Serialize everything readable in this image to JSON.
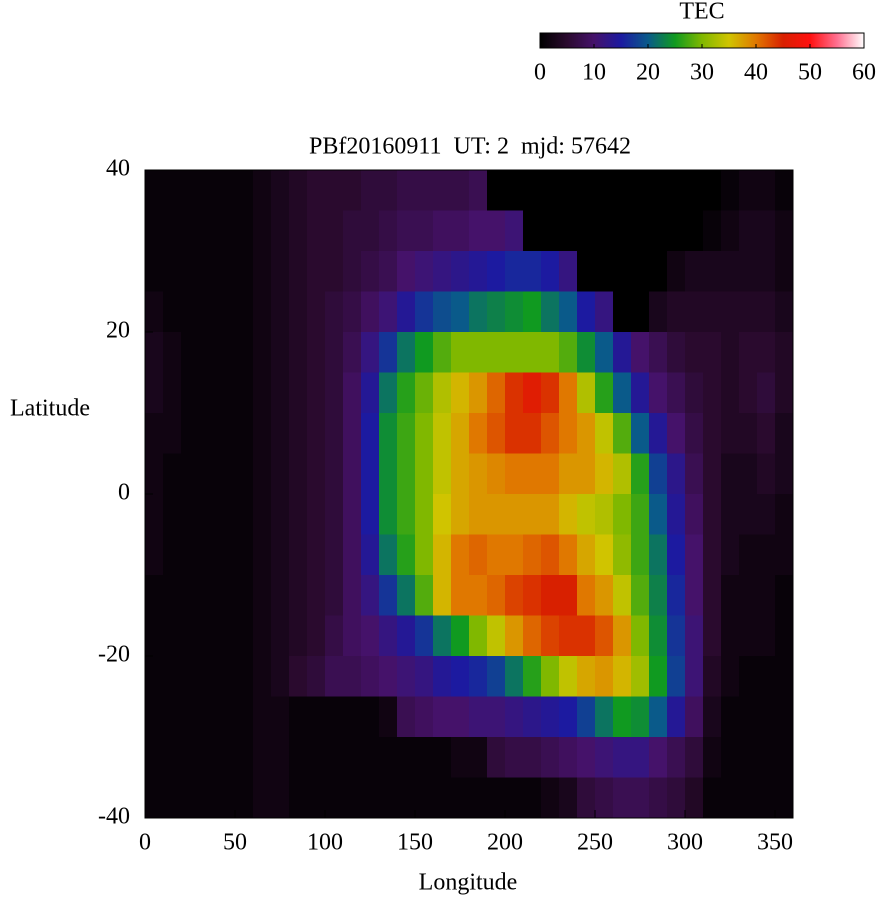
{
  "chart_data": {
    "type": "heatmap",
    "title": "PBf20160911  UT: 2  mjd: 57642",
    "x_label": "Longitude",
    "y_label": "Latitude",
    "xlim": [
      0,
      360
    ],
    "xticks": [
      0,
      50,
      100,
      150,
      200,
      250,
      300,
      350
    ],
    "ylim": [
      -40,
      40
    ],
    "yticks": [
      -40,
      -20,
      0,
      20,
      40
    ],
    "x": [
      5,
      15,
      25,
      35,
      45,
      55,
      65,
      75,
      85,
      95,
      105,
      115,
      125,
      135,
      145,
      155,
      165,
      175,
      185,
      195,
      205,
      215,
      225,
      235,
      245,
      255,
      265,
      275,
      285,
      295,
      305,
      315,
      325,
      335,
      345,
      355
    ],
    "y": [
      37.5,
      32.5,
      27.5,
      22.5,
      17.5,
      12.5,
      7.5,
      2.5,
      -2.5,
      -7.5,
      -12.5,
      -17.5,
      -22.5,
      -27.5,
      -32.5,
      -37.5
    ],
    "z": [
      [
        1,
        1,
        1,
        2,
        3,
        3,
        2,
        2,
        2,
        2,
        1,
        1,
        1,
        1,
        1,
        1
      ],
      [
        1,
        1,
        1,
        1,
        2,
        2,
        2,
        1,
        1,
        1,
        1,
        1,
        1,
        1,
        1,
        1
      ],
      [
        1,
        1,
        1,
        1,
        1,
        1,
        1,
        1,
        1,
        1,
        1,
        1,
        1,
        1,
        1,
        1
      ],
      [
        1,
        1,
        1,
        1,
        1,
        1,
        1,
        1,
        1,
        1,
        1,
        1,
        1,
        1,
        1,
        1
      ],
      [
        1,
        1,
        1,
        1,
        1,
        1,
        1,
        1,
        1,
        1,
        1,
        1,
        1,
        1,
        1,
        1
      ],
      [
        1,
        1,
        1,
        1,
        1,
        1,
        1,
        1,
        1,
        1,
        1,
        1,
        1,
        1,
        1,
        1
      ],
      [
        2,
        2,
        2,
        2,
        2,
        2,
        2,
        2,
        2,
        2,
        2,
        2,
        2,
        2,
        2,
        2
      ],
      [
        3,
        3,
        3,
        3,
        3,
        3,
        3,
        3,
        3,
        3,
        3,
        3,
        3,
        2,
        2,
        2
      ],
      [
        4,
        4,
        4,
        4,
        4,
        4,
        4,
        4,
        4,
        4,
        4,
        4,
        5,
        1,
        1,
        1
      ],
      [
        5,
        5,
        5,
        5,
        5,
        5,
        5,
        5,
        5,
        5,
        5,
        5,
        6,
        1,
        1,
        1
      ],
      [
        5,
        5,
        5,
        6,
        6,
        6,
        6,
        6,
        6,
        6,
        6,
        7,
        8,
        1,
        1,
        1
      ],
      [
        5,
        6,
        6,
        7,
        8,
        9,
        9,
        9,
        9,
        9,
        9,
        9,
        8,
        1,
        1,
        1
      ],
      [
        6,
        6,
        7,
        9,
        12,
        14,
        15,
        15,
        15,
        14,
        12,
        10,
        9,
        1,
        1,
        1
      ],
      [
        6,
        7,
        8,
        11,
        17,
        22,
        24,
        24,
        24,
        22,
        17,
        12,
        10,
        2,
        1,
        1
      ],
      [
        7,
        8,
        10,
        14,
        22,
        26,
        27,
        27,
        27,
        26,
        22,
        14,
        11,
        8,
        1,
        1
      ],
      [
        7,
        8,
        11,
        17,
        25,
        29,
        30,
        30,
        30,
        30,
        28,
        17,
        12,
        9,
        1,
        1
      ],
      [
        7,
        9,
        12,
        19,
        28,
        33,
        34,
        34,
        35,
        36,
        36,
        22,
        14,
        10,
        1,
        1
      ],
      [
        7,
        9,
        13,
        20,
        30,
        36,
        37,
        37,
        37,
        40,
        40,
        25,
        15,
        10,
        2,
        1
      ],
      [
        8,
        10,
        14,
        22,
        30,
        38,
        40,
        38,
        38,
        41,
        40,
        30,
        16,
        11,
        2,
        1
      ],
      [
        0,
        10,
        15,
        23,
        30,
        41,
        42,
        39,
        38,
        40,
        41,
        34,
        18,
        11,
        6,
        1
      ],
      [
        0,
        11,
        16,
        24,
        30,
        44,
        44,
        40,
        38,
        40,
        43,
        38,
        22,
        12,
        7,
        1
      ],
      [
        0,
        0,
        16,
        25,
        30,
        46,
        44,
        40,
        38,
        41,
        44,
        41,
        26,
        13,
        7,
        1
      ],
      [
        0,
        0,
        15,
        22,
        30,
        44,
        42,
        40,
        38,
        42,
        45,
        43,
        30,
        14,
        8,
        2
      ],
      [
        0,
        0,
        12,
        20,
        28,
        40,
        40,
        38,
        36,
        40,
        45,
        44,
        34,
        15,
        9,
        3
      ],
      [
        0,
        0,
        0,
        15,
        24,
        33,
        38,
        38,
        34,
        37,
        40,
        44,
        37,
        18,
        10,
        6
      ],
      [
        0,
        0,
        0,
        12,
        20,
        26,
        34,
        36,
        33,
        35,
        38,
        42,
        38,
        22,
        11,
        7
      ],
      [
        0,
        0,
        0,
        0,
        14,
        20,
        28,
        33,
        30,
        31,
        34,
        38,
        36,
        25,
        12,
        8
      ],
      [
        0,
        0,
        0,
        0,
        10,
        14,
        20,
        26,
        27,
        27,
        28,
        30,
        32,
        24,
        12,
        8
      ],
      [
        0,
        0,
        0,
        3,
        8,
        10,
        14,
        18,
        20,
        22,
        23,
        24,
        25,
        20,
        10,
        7
      ],
      [
        0,
        0,
        2,
        4,
        6,
        8,
        10,
        13,
        14,
        15,
        16,
        17,
        18,
        14,
        8,
        6
      ],
      [
        0,
        0,
        3,
        4,
        5,
        6,
        7,
        8,
        9,
        10,
        10,
        11,
        11,
        9,
        6,
        4
      ],
      [
        0,
        1,
        3,
        4,
        5,
        5,
        5,
        5,
        5,
        5,
        5,
        5,
        4,
        3,
        2,
        1
      ],
      [
        1,
        2,
        3,
        4,
        4,
        4,
        4,
        3,
        3,
        3,
        2,
        2,
        2,
        1,
        1,
        1
      ],
      [
        2,
        3,
        3,
        4,
        5,
        5,
        4,
        3,
        3,
        2,
        2,
        2,
        1,
        1,
        1,
        1
      ],
      [
        2,
        3,
        3,
        4,
        5,
        6,
        5,
        4,
        3,
        2,
        2,
        2,
        1,
        1,
        1,
        1
      ],
      [
        1,
        2,
        2,
        3,
        4,
        4,
        3,
        3,
        2,
        2,
        1,
        1,
        1,
        1,
        1,
        1
      ]
    ],
    "colorbar": {
      "label": "TEC",
      "lim": [
        0,
        60
      ],
      "ticks": [
        0,
        10,
        20,
        30,
        40,
        50,
        60
      ]
    },
    "colormap": [
      "#000000",
      "#2a0a2e",
      "#45126a",
      "#1c1aa0",
      "#0a5a8a",
      "#109a20",
      "#80b800",
      "#d0c400",
      "#e07800",
      "#d82000",
      "#ff1010",
      "#ff7090",
      "#ffffff"
    ]
  }
}
